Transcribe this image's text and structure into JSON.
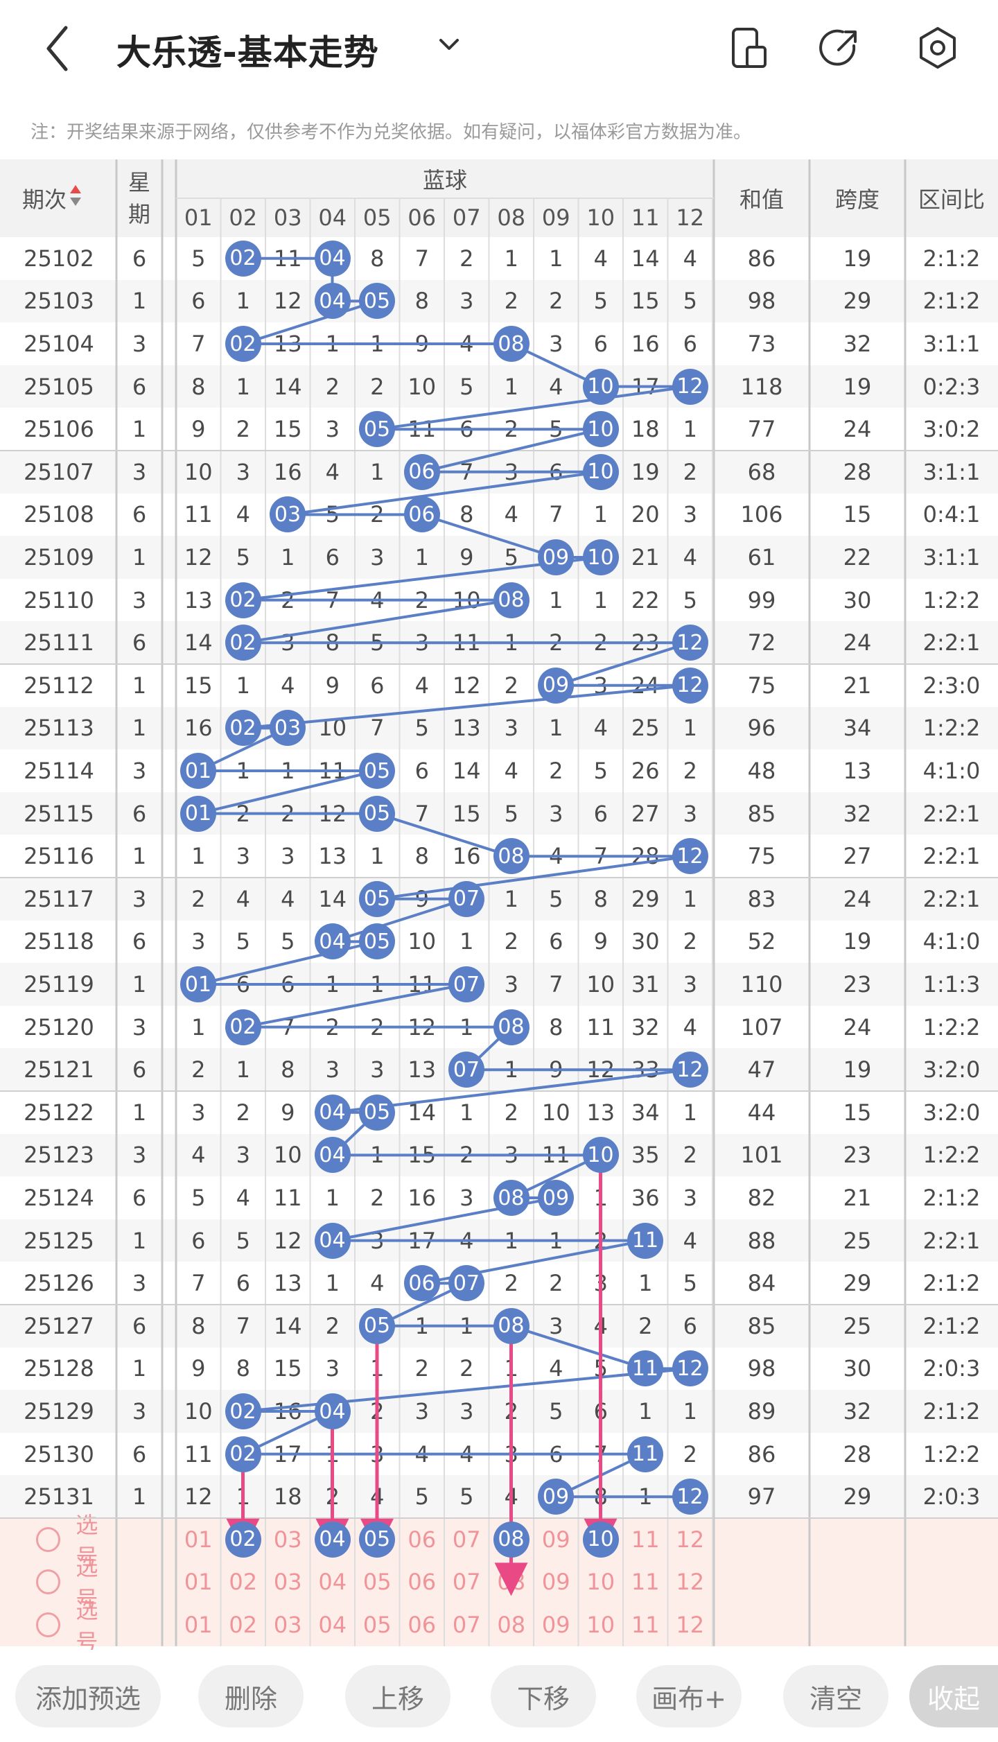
{
  "header": {
    "title": "大乐透-基本走势",
    "back_icon": "chevron-left-icon",
    "caret_icon": "chevron-down-icon",
    "icons": [
      "phone-layout-icon",
      "share-icon",
      "settings-icon"
    ]
  },
  "notice": "注：开奖结果来源于网络，仅供参考不作为兑奖依据。如有疑问，以福体彩官方数据为准。",
  "table": {
    "col_period": "期次",
    "col_week": "星期",
    "blue_group": "蓝球",
    "blue_numbers": [
      "01",
      "02",
      "03",
      "04",
      "05",
      "06",
      "07",
      "08",
      "09",
      "10",
      "11",
      "12"
    ],
    "col_sum": "和值",
    "col_span": "跨度",
    "col_ratio": "区间比",
    "rows": [
      {
        "period": "25102",
        "week": "6",
        "cells": [
          "5",
          "02",
          "11",
          "04",
          "8",
          "7",
          "2",
          "1",
          "1",
          "4",
          "14",
          "4"
        ],
        "hits": [
          2,
          4
        ],
        "sum": "86",
        "span": "19",
        "ratio": "2:1:2"
      },
      {
        "period": "25103",
        "week": "1",
        "cells": [
          "6",
          "1",
          "12",
          "04",
          "05",
          "8",
          "3",
          "2",
          "2",
          "5",
          "15",
          "5"
        ],
        "hits": [
          4,
          5
        ],
        "sum": "98",
        "span": "29",
        "ratio": "2:1:2"
      },
      {
        "period": "25104",
        "week": "3",
        "cells": [
          "7",
          "02",
          "13",
          "1",
          "1",
          "9",
          "4",
          "08",
          "3",
          "6",
          "16",
          "6"
        ],
        "hits": [
          2,
          8
        ],
        "sum": "73",
        "span": "32",
        "ratio": "3:1:1"
      },
      {
        "period": "25105",
        "week": "6",
        "cells": [
          "8",
          "1",
          "14",
          "2",
          "2",
          "10",
          "5",
          "1",
          "4",
          "10",
          "17",
          "12"
        ],
        "hits": [
          10,
          12
        ],
        "sum": "118",
        "span": "19",
        "ratio": "0:2:3"
      },
      {
        "period": "25106",
        "week": "1",
        "cells": [
          "9",
          "2",
          "15",
          "3",
          "05",
          "11",
          "6",
          "2",
          "5",
          "10",
          "18",
          "1"
        ],
        "hits": [
          5,
          10
        ],
        "sum": "77",
        "span": "24",
        "ratio": "3:0:2"
      },
      {
        "period": "25107",
        "week": "3",
        "cells": [
          "10",
          "3",
          "16",
          "4",
          "1",
          "06",
          "7",
          "3",
          "6",
          "10",
          "19",
          "2"
        ],
        "hits": [
          6,
          10
        ],
        "sum": "68",
        "span": "28",
        "ratio": "3:1:1"
      },
      {
        "period": "25108",
        "week": "6",
        "cells": [
          "11",
          "4",
          "03",
          "5",
          "2",
          "06",
          "8",
          "4",
          "7",
          "1",
          "20",
          "3"
        ],
        "hits": [
          3,
          6
        ],
        "sum": "106",
        "span": "15",
        "ratio": "0:4:1"
      },
      {
        "period": "25109",
        "week": "1",
        "cells": [
          "12",
          "5",
          "1",
          "6",
          "3",
          "1",
          "9",
          "5",
          "09",
          "10",
          "21",
          "4"
        ],
        "hits": [
          9,
          10
        ],
        "sum": "61",
        "span": "22",
        "ratio": "3:1:1"
      },
      {
        "period": "25110",
        "week": "3",
        "cells": [
          "13",
          "02",
          "2",
          "7",
          "4",
          "2",
          "10",
          "08",
          "1",
          "1",
          "22",
          "5"
        ],
        "hits": [
          2,
          8
        ],
        "sum": "99",
        "span": "30",
        "ratio": "1:2:2"
      },
      {
        "period": "25111",
        "week": "6",
        "cells": [
          "14",
          "02",
          "3",
          "8",
          "5",
          "3",
          "11",
          "1",
          "2",
          "2",
          "23",
          "12"
        ],
        "hits": [
          2,
          12
        ],
        "sum": "72",
        "span": "24",
        "ratio": "2:2:1"
      },
      {
        "period": "25112",
        "week": "1",
        "cells": [
          "15",
          "1",
          "4",
          "9",
          "6",
          "4",
          "12",
          "2",
          "09",
          "3",
          "24",
          "12"
        ],
        "hits": [
          9,
          12
        ],
        "sum": "75",
        "span": "21",
        "ratio": "2:3:0"
      },
      {
        "period": "25113",
        "week": "1",
        "cells": [
          "16",
          "02",
          "03",
          "10",
          "7",
          "5",
          "13",
          "3",
          "1",
          "4",
          "25",
          "1"
        ],
        "hits": [
          2,
          3
        ],
        "sum": "96",
        "span": "34",
        "ratio": "1:2:2"
      },
      {
        "period": "25114",
        "week": "3",
        "cells": [
          "01",
          "1",
          "1",
          "11",
          "05",
          "6",
          "14",
          "4",
          "2",
          "5",
          "26",
          "2"
        ],
        "hits": [
          1,
          5
        ],
        "sum": "48",
        "span": "13",
        "ratio": "4:1:0"
      },
      {
        "period": "25115",
        "week": "6",
        "cells": [
          "01",
          "2",
          "2",
          "12",
          "05",
          "7",
          "15",
          "5",
          "3",
          "6",
          "27",
          "3"
        ],
        "hits": [
          1,
          5
        ],
        "sum": "85",
        "span": "32",
        "ratio": "2:2:1"
      },
      {
        "period": "25116",
        "week": "1",
        "cells": [
          "1",
          "3",
          "3",
          "13",
          "1",
          "8",
          "16",
          "08",
          "4",
          "7",
          "28",
          "12"
        ],
        "hits": [
          8,
          12
        ],
        "sum": "75",
        "span": "27",
        "ratio": "2:2:1"
      },
      {
        "period": "25117",
        "week": "3",
        "cells": [
          "2",
          "4",
          "4",
          "14",
          "05",
          "9",
          "07",
          "1",
          "5",
          "8",
          "29",
          "1"
        ],
        "hits": [
          5,
          7
        ],
        "sum": "83",
        "span": "24",
        "ratio": "2:2:1"
      },
      {
        "period": "25118",
        "week": "6",
        "cells": [
          "3",
          "5",
          "5",
          "04",
          "05",
          "10",
          "1",
          "2",
          "6",
          "9",
          "30",
          "2"
        ],
        "hits": [
          4,
          5
        ],
        "sum": "52",
        "span": "19",
        "ratio": "4:1:0"
      },
      {
        "period": "25119",
        "week": "1",
        "cells": [
          "01",
          "6",
          "6",
          "1",
          "1",
          "11",
          "07",
          "3",
          "7",
          "10",
          "31",
          "3"
        ],
        "hits": [
          1,
          7
        ],
        "sum": "110",
        "span": "23",
        "ratio": "1:1:3"
      },
      {
        "period": "25120",
        "week": "3",
        "cells": [
          "1",
          "02",
          "7",
          "2",
          "2",
          "12",
          "1",
          "08",
          "8",
          "11",
          "32",
          "4"
        ],
        "hits": [
          2,
          8
        ],
        "sum": "107",
        "span": "24",
        "ratio": "1:2:2"
      },
      {
        "period": "25121",
        "week": "6",
        "cells": [
          "2",
          "1",
          "8",
          "3",
          "3",
          "13",
          "07",
          "1",
          "9",
          "12",
          "33",
          "12"
        ],
        "hits": [
          7,
          12
        ],
        "sum": "47",
        "span": "19",
        "ratio": "3:2:0"
      },
      {
        "period": "25122",
        "week": "1",
        "cells": [
          "3",
          "2",
          "9",
          "04",
          "05",
          "14",
          "1",
          "2",
          "10",
          "13",
          "34",
          "1"
        ],
        "hits": [
          4,
          5
        ],
        "sum": "44",
        "span": "15",
        "ratio": "3:2:0"
      },
      {
        "period": "25123",
        "week": "3",
        "cells": [
          "4",
          "3",
          "10",
          "04",
          "1",
          "15",
          "2",
          "3",
          "11",
          "10",
          "35",
          "2"
        ],
        "hits": [
          4,
          10
        ],
        "sum": "101",
        "span": "23",
        "ratio": "1:2:2"
      },
      {
        "period": "25124",
        "week": "6",
        "cells": [
          "5",
          "4",
          "11",
          "1",
          "2",
          "16",
          "3",
          "08",
          "09",
          "1",
          "36",
          "3"
        ],
        "hits": [
          8,
          9
        ],
        "sum": "82",
        "span": "21",
        "ratio": "2:1:2"
      },
      {
        "period": "25125",
        "week": "1",
        "cells": [
          "6",
          "5",
          "12",
          "04",
          "3",
          "17",
          "4",
          "1",
          "1",
          "2",
          "11",
          "4"
        ],
        "hits": [
          4,
          11
        ],
        "sum": "88",
        "span": "25",
        "ratio": "2:2:1"
      },
      {
        "period": "25126",
        "week": "3",
        "cells": [
          "7",
          "6",
          "13",
          "1",
          "4",
          "06",
          "07",
          "2",
          "2",
          "3",
          "1",
          "5"
        ],
        "hits": [
          6,
          7
        ],
        "sum": "84",
        "span": "29",
        "ratio": "2:1:2"
      },
      {
        "period": "25127",
        "week": "6",
        "cells": [
          "8",
          "7",
          "14",
          "2",
          "05",
          "1",
          "1",
          "08",
          "3",
          "4",
          "2",
          "6"
        ],
        "hits": [
          5,
          8
        ],
        "sum": "85",
        "span": "25",
        "ratio": "2:1:2"
      },
      {
        "period": "25128",
        "week": "1",
        "cells": [
          "9",
          "8",
          "15",
          "3",
          "1",
          "2",
          "2",
          "1",
          "4",
          "5",
          "11",
          "12"
        ],
        "hits": [
          11,
          12
        ],
        "sum": "98",
        "span": "30",
        "ratio": "2:0:3"
      },
      {
        "period": "25129",
        "week": "3",
        "cells": [
          "10",
          "02",
          "16",
          "04",
          "2",
          "3",
          "3",
          "2",
          "5",
          "6",
          "1",
          "1"
        ],
        "hits": [
          2,
          4
        ],
        "sum": "89",
        "span": "32",
        "ratio": "2:1:2"
      },
      {
        "period": "25130",
        "week": "6",
        "cells": [
          "11",
          "02",
          "17",
          "1",
          "3",
          "4",
          "4",
          "3",
          "6",
          "7",
          "11",
          "2"
        ],
        "hits": [
          2,
          11
        ],
        "sum": "86",
        "span": "28",
        "ratio": "1:2:2"
      },
      {
        "period": "25131",
        "week": "1",
        "cells": [
          "12",
          "1",
          "18",
          "2",
          "4",
          "5",
          "5",
          "4",
          "09",
          "8",
          "1",
          "12"
        ],
        "hits": [
          9,
          12
        ],
        "sum": "97",
        "span": "29",
        "ratio": "2:0:3"
      }
    ],
    "pick_rows": [
      {
        "label": "选号",
        "selected": [
          2,
          4,
          5,
          8,
          10
        ]
      },
      {
        "label": "选号",
        "selected": []
      },
      {
        "label": "选号",
        "selected": []
      }
    ]
  },
  "bottom_bar": {
    "add": "添加预选",
    "delete": "删除",
    "move_up": "上移",
    "move_down": "下移",
    "canvas": "画布+",
    "clear": "清空",
    "collapse": "收起"
  },
  "colors": {
    "ball": "#5b7fc6",
    "line": "#5b7fc6",
    "arrow": "#e94a86",
    "pick_text": "#f0949a",
    "pick_bg": "#fdeeea"
  }
}
